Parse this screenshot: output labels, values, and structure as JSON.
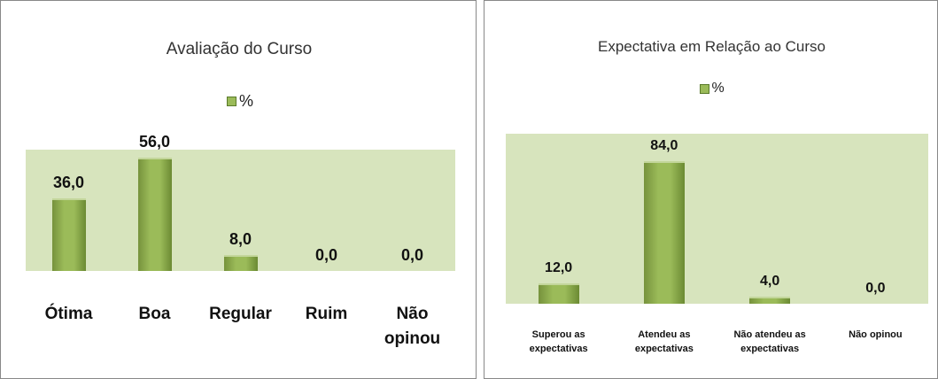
{
  "chart_data": [
    {
      "type": "bar",
      "title": "Avaliação do Curso",
      "categories": [
        "Ótima",
        "Boa",
        "Regular",
        "Ruim",
        "Não opinou"
      ],
      "series": [
        {
          "name": "%",
          "color": "#9bbb59",
          "values": [
            36,
            56,
            8,
            0,
            0
          ],
          "value_labels": [
            "36,0",
            "56,0",
            "8,0",
            "0,0",
            "0,0"
          ]
        }
      ],
      "ylim": [
        0,
        60
      ],
      "legend": "top"
    },
    {
      "type": "bar",
      "title": "Expectativa em Relação ao Curso",
      "categories": [
        "Superou as expectativas",
        "Atendeu as expectativas",
        "Não atendeu as expectativas",
        "Não opinou"
      ],
      "series": [
        {
          "name": "%",
          "color": "#9bbb59",
          "values": [
            12,
            84,
            4,
            0
          ],
          "value_labels": [
            "12,0",
            "84,0",
            "4,0",
            "0,0"
          ]
        }
      ],
      "ylim": [
        0,
        100
      ],
      "legend": "top"
    }
  ]
}
